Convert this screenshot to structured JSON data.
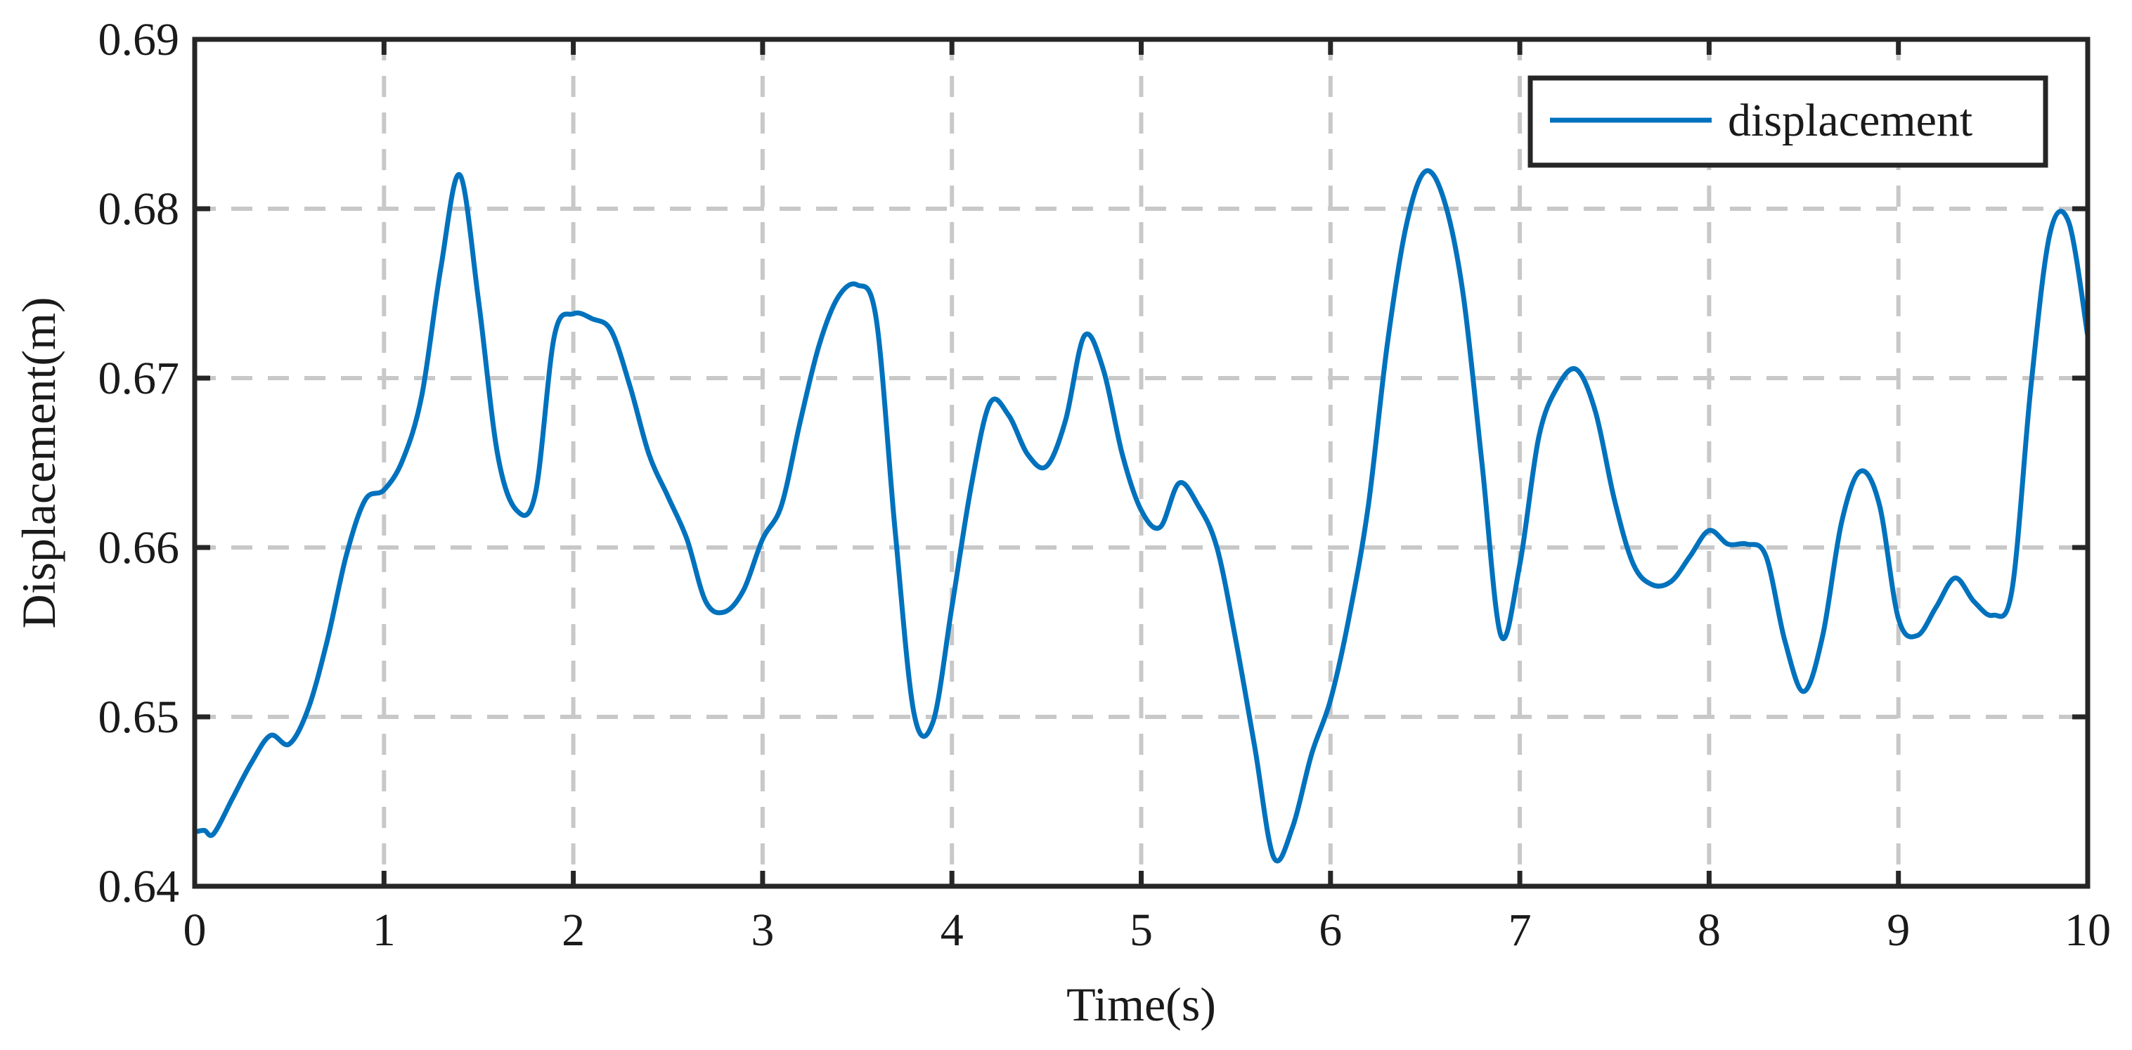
{
  "chart_data": {
    "type": "line",
    "title": "",
    "xlabel": "Time(s)",
    "ylabel": "Displacement(m)",
    "xlim": [
      0,
      10
    ],
    "ylim": [
      0.64,
      0.69
    ],
    "x_ticks": [
      0,
      1,
      2,
      3,
      4,
      5,
      6,
      7,
      8,
      9,
      10
    ],
    "x_tick_labels": [
      "0",
      "1",
      "2",
      "3",
      "4",
      "5",
      "6",
      "7",
      "8",
      "9",
      "10"
    ],
    "y_ticks": [
      0.64,
      0.65,
      0.66,
      0.67,
      0.68,
      0.69
    ],
    "y_tick_labels": [
      "0.64",
      "0.65",
      "0.66",
      "0.67",
      "0.68",
      "0.69"
    ],
    "grid": true,
    "legend": {
      "position": "top-right",
      "entries": [
        "displacement"
      ]
    },
    "series": [
      {
        "name": "displacement",
        "color": "#0072BD",
        "x": [
          0,
          0.05,
          0.1,
          0.2,
          0.3,
          0.4,
          0.5,
          0.6,
          0.7,
          0.8,
          0.9,
          1.0,
          1.1,
          1.2,
          1.3,
          1.4,
          1.5,
          1.6,
          1.7,
          1.8,
          1.9,
          2.0,
          2.1,
          2.2,
          2.3,
          2.4,
          2.5,
          2.6,
          2.7,
          2.8,
          2.9,
          3.0,
          3.1,
          3.2,
          3.3,
          3.4,
          3.5,
          3.6,
          3.7,
          3.8,
          3.9,
          4.0,
          4.1,
          4.2,
          4.3,
          4.4,
          4.5,
          4.6,
          4.7,
          4.8,
          4.9,
          5.0,
          5.1,
          5.2,
          5.3,
          5.4,
          5.5,
          5.6,
          5.7,
          5.8,
          5.9,
          6.0,
          6.1,
          6.2,
          6.3,
          6.4,
          6.5,
          6.6,
          6.7,
          6.8,
          6.9,
          7.0,
          7.1,
          7.2,
          7.3,
          7.4,
          7.5,
          7.6,
          7.7,
          7.8,
          7.9,
          8.0,
          8.1,
          8.2,
          8.3,
          8.4,
          8.5,
          8.6,
          8.7,
          8.8,
          8.9,
          9.0,
          9.1,
          9.2,
          9.3,
          9.4,
          9.5,
          9.6,
          9.7,
          9.8,
          9.9,
          10.0
        ],
        "values": [
          0.6432,
          0.6433,
          0.6431,
          0.6452,
          0.6473,
          0.6489,
          0.6484,
          0.6505,
          0.6545,
          0.6595,
          0.6628,
          0.6634,
          0.6652,
          0.669,
          0.6765,
          0.682,
          0.6745,
          0.6655,
          0.6622,
          0.6632,
          0.6725,
          0.6738,
          0.6735,
          0.6728,
          0.6695,
          0.6655,
          0.663,
          0.6605,
          0.6568,
          0.6562,
          0.6575,
          0.6605,
          0.6625,
          0.6675,
          0.672,
          0.6748,
          0.6755,
          0.6735,
          0.661,
          0.6502,
          0.6497,
          0.6565,
          0.6635,
          0.6685,
          0.6678,
          0.6655,
          0.6648,
          0.6675,
          0.6725,
          0.6705,
          0.6655,
          0.6622,
          0.6612,
          0.6638,
          0.6625,
          0.66,
          0.6545,
          0.6482,
          0.6417,
          0.6435,
          0.6478,
          0.651,
          0.656,
          0.6625,
          0.672,
          0.679,
          0.6822,
          0.6805,
          0.675,
          0.665,
          0.6548,
          0.659,
          0.6665,
          0.6695,
          0.6705,
          0.668,
          0.6628,
          0.659,
          0.6578,
          0.658,
          0.6595,
          0.661,
          0.6602,
          0.6602,
          0.6595,
          0.6545,
          0.6515,
          0.6548,
          0.6615,
          0.6645,
          0.6625,
          0.6558,
          0.6548,
          0.6565,
          0.6582,
          0.6568,
          0.656,
          0.6575,
          0.6695,
          0.6785,
          0.6792,
          0.6725
        ]
      }
    ]
  }
}
